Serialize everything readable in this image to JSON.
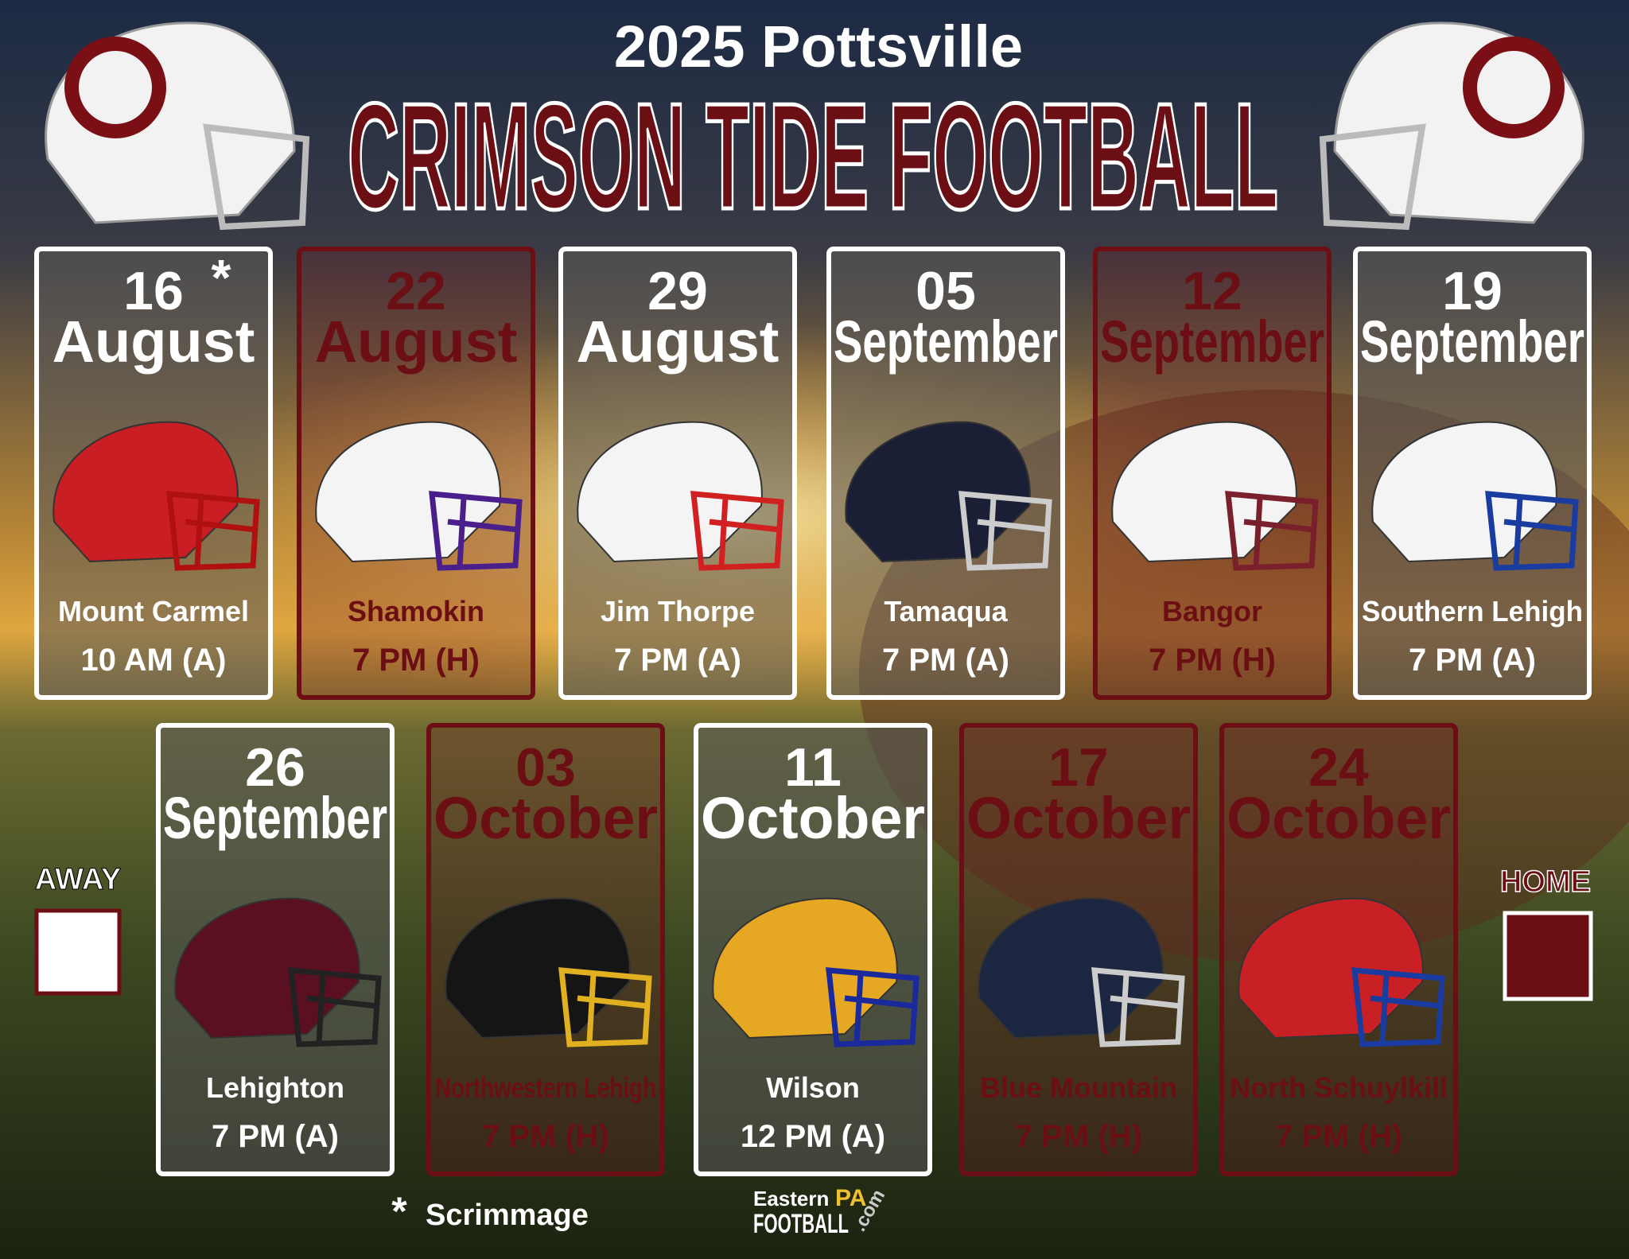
{
  "header": {
    "subtitle": "2025 Pottsville",
    "title": "CRIMSON TIDE FOOTBALL"
  },
  "games": [
    {
      "day": "16",
      "mark": "*",
      "month": "August",
      "opponent": "Mount Carmel",
      "time": "10 AM (A)",
      "color": "#ffffff"
    },
    {
      "day": "22",
      "month": "August",
      "opponent": "Shamokin",
      "time": "7 PM (H)",
      "color": "#6b0f14"
    },
    {
      "day": "29",
      "month": "August",
      "opponent": "Jim Thorpe",
      "time": "7 PM (A)",
      "color": "#ffffff"
    },
    {
      "day": "05",
      "month": "September",
      "opponent": "Tamaqua",
      "time": "7 PM (A)",
      "color": "#ffffff"
    },
    {
      "day": "12",
      "month": "September",
      "opponent": "Bangor",
      "time": "7 PM  (H)",
      "color": "#6b0f14"
    },
    {
      "day": "19",
      "month": "September",
      "opponent": "Southern Lehigh",
      "time": "7 PM (A)",
      "color": "#ffffff"
    },
    {
      "day": "26",
      "month": "September",
      "opponent": "Lehighton",
      "time": "7 PM (A)",
      "color": "#ffffff"
    },
    {
      "day": "03",
      "month": "October",
      "opponent": "Northwestern Lehigh",
      "time": "7 PM (H)",
      "color": "#6b0f14"
    },
    {
      "day": "11",
      "month": "October",
      "opponent": "Wilson",
      "time": "12 PM (A)",
      "color": "#ffffff"
    },
    {
      "day": "17",
      "month": "October",
      "opponent": "Blue Mountain",
      "time": "7 PM (H)",
      "color": "#6b0f14"
    },
    {
      "day": "24",
      "month": "October",
      "opponent": "North Schuylkill",
      "time": "7 PM (H)",
      "color": "#6b0f14"
    }
  ],
  "legend": {
    "away": {
      "label": "AWAY",
      "color": "#ffffff"
    },
    "home": {
      "label": "HOME",
      "color": "#6b0f14"
    }
  },
  "footnote": {
    "mark": "*",
    "text": "Scrimmage"
  },
  "logo": {
    "line1": "Eastern",
    "line1b": "PA",
    "line2": "FOOTBALL",
    "suffix": ".com"
  }
}
